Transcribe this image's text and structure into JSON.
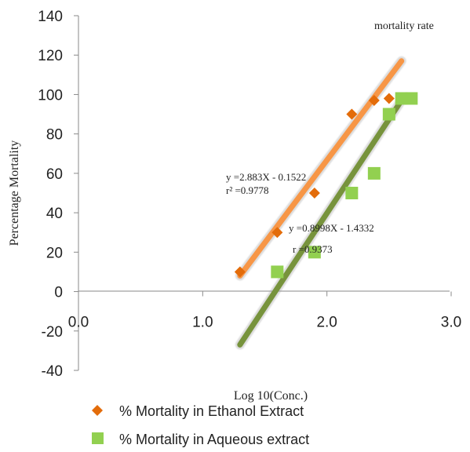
{
  "chart_data": {
    "type": "scatter",
    "title": "mortality rate",
    "xlabel": "Log 10(Conc.)",
    "ylabel": "Percentage Mortality",
    "xlim": [
      0,
      3
    ],
    "ylim": [
      -40,
      140
    ],
    "x_ticks": [
      "0.0",
      "1.0",
      "2.0",
      "3.0"
    ],
    "y_ticks": [
      "140",
      "120",
      "100",
      "80",
      "60",
      "40",
      "20",
      "0",
      "-20",
      "-40"
    ],
    "grid": false,
    "legend_position": "bottom",
    "series": [
      {
        "name": "% Mortality in Ethanol Extract",
        "marker": "diamond",
        "color": "#e36c0a",
        "trendline_color": "#f79646",
        "x": [
          1.3,
          1.6,
          1.9,
          2.2,
          2.38,
          2.5
        ],
        "y": [
          10,
          30,
          50,
          90,
          97,
          98
        ],
        "trendline": {
          "x": [
            1.3,
            2.6
          ],
          "y": [
            8,
            117
          ]
        }
      },
      {
        "name": "% Mortality in Aqueous extract",
        "marker": "square",
        "color": "#92d050",
        "trendline_color": "#77933c",
        "x": [
          1.6,
          1.9,
          2.2,
          2.38,
          2.5,
          2.6,
          2.68
        ],
        "y": [
          10,
          20,
          50,
          60,
          90,
          98,
          98
        ],
        "trendline": {
          "x": [
            1.3,
            2.6
          ],
          "y": [
            -27,
            97
          ]
        }
      }
    ],
    "annotations": [
      {
        "lines": [
          "y =2.883X - 0.1522",
          "r² =0.9778"
        ],
        "x": 1.22,
        "y": 58
      },
      {
        "lines": [
          "y =0.8998X - 1.4332",
          "r =0.9373"
        ],
        "x": 1.72,
        "y": 30
      }
    ]
  }
}
